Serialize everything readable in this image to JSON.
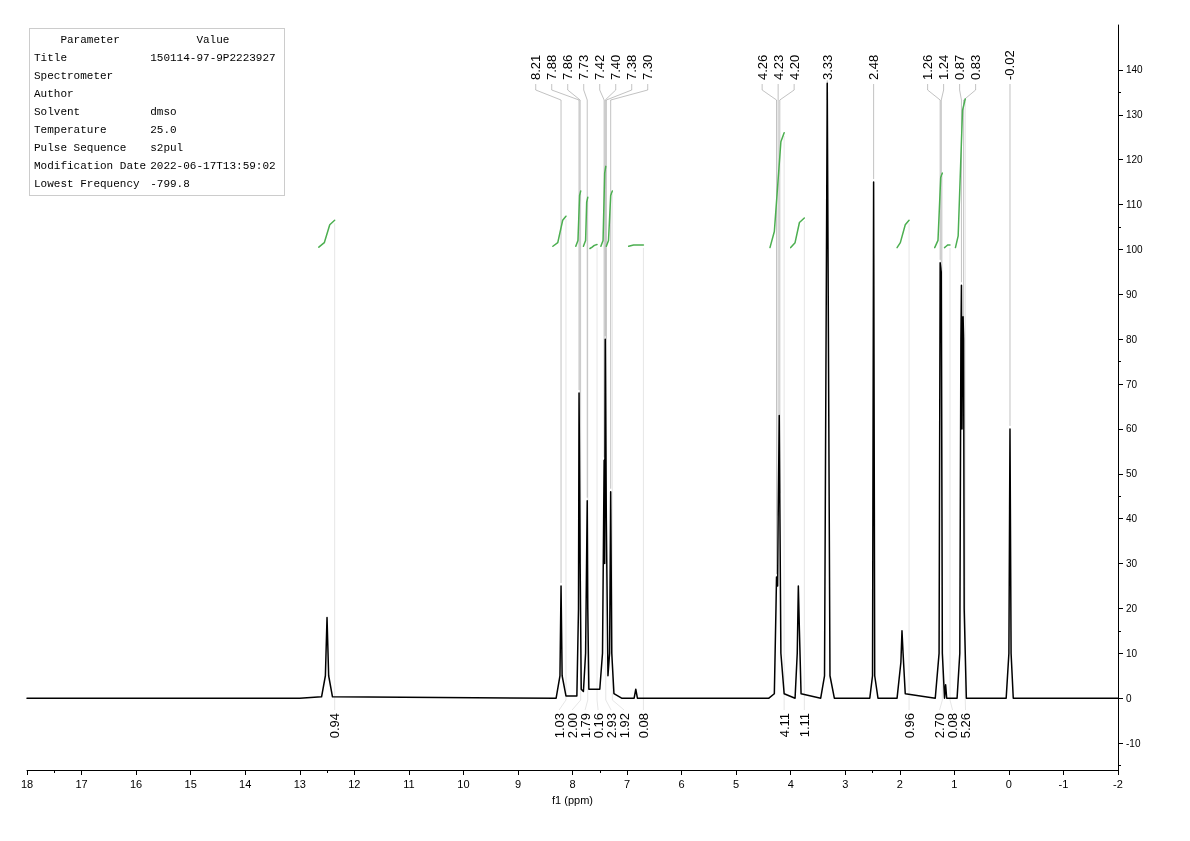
{
  "chart_data": [
    {
      "type": "line",
      "xlabel": "f1 (ppm)",
      "xlim": [
        18,
        -2
      ],
      "xticks": [
        18,
        17,
        16,
        15,
        14,
        13,
        12,
        11,
        10,
        9,
        8,
        7,
        6,
        5,
        4,
        3,
        2,
        1,
        0,
        -1,
        -2
      ],
      "ylim": [
        -16,
        150
      ],
      "yticks": [
        -10,
        0,
        10,
        20,
        30,
        40,
        50,
        60,
        70,
        80,
        90,
        100,
        110,
        120,
        130,
        140
      ],
      "grid": false,
      "marker": "none",
      "line_style": "solid",
      "series": [
        {
          "color": "#000000",
          "x": [
            18,
            13,
            12.6,
            12.53,
            12.5,
            12.47,
            12.4,
            8.3,
            8.23,
            8.21,
            8.19,
            8.12,
            7.92,
            7.89,
            7.88,
            7.86,
            7.84,
            7.8,
            7.76,
            7.73,
            7.72,
            7.7,
            7.6,
            7.5,
            7.45,
            7.42,
            7.41,
            7.4,
            7.38,
            7.35,
            7.32,
            7.3,
            7.28,
            7.24,
            7.1,
            6.87,
            6.84,
            6.81,
            4.4,
            4.3,
            4.27,
            4.26,
            4.24,
            4.23,
            4.21,
            4.2,
            4.18,
            4.12,
            3.92,
            3.88,
            3.86,
            3.84,
            3.81,
            3.45,
            3.38,
            3.33,
            3.28,
            3.2,
            2.55,
            2.5,
            2.48,
            2.46,
            2.4,
            2.05,
            1.98,
            1.96,
            1.94,
            1.9,
            1.35,
            1.28,
            1.26,
            1.24,
            1.22,
            1.18,
            1.16,
            1.14,
            0.95,
            0.9,
            0.88,
            0.87,
            0.86,
            0.85,
            0.84,
            0.83,
            0.82,
            0.78,
            0.05,
            0,
            -0.02,
            -0.04,
            -0.08,
            -2
          ],
          "values": [
            0,
            0,
            0.3,
            5,
            18,
            5,
            0.3,
            0,
            5,
            25,
            5,
            0.5,
            0.5,
            20,
            68,
            30,
            2,
            1.5,
            10,
            44,
            20,
            2,
            2,
            2,
            10,
            53,
            30,
            80,
            40,
            5,
            10,
            46,
            10,
            1,
            0,
            0,
            2,
            0,
            0,
            1,
            20,
            27,
            25,
            40,
            63,
            45,
            10,
            1,
            0,
            10,
            25,
            15,
            1,
            0,
            5,
            137,
            5,
            0,
            0,
            5,
            115,
            5,
            0,
            0,
            8,
            15,
            10,
            1,
            0,
            10,
            97,
            95,
            10,
            0,
            3,
            0,
            0,
            10,
            80,
            92,
            60,
            77,
            85,
            80,
            20,
            0,
            0,
            10,
            60,
            10,
            0,
            0
          ]
        },
        {
          "color": "#4caf50",
          "x": [
            12.65,
            12.55,
            12.45,
            12.36
          ],
          "values": [
            100.5,
            101.5,
            105.5,
            106.5
          ]
        },
        {
          "color": "#4caf50",
          "x": [
            8.36,
            8.27,
            8.18,
            8.12
          ],
          "values": [
            100.7,
            101.5,
            106.5,
            107.4
          ]
        },
        {
          "color": "#4caf50",
          "x": [
            7.94,
            7.9,
            7.87,
            7.85
          ],
          "values": [
            100.7,
            102,
            112,
            113
          ]
        },
        {
          "color": "#4caf50",
          "x": [
            7.8,
            7.76,
            7.74,
            7.72
          ],
          "values": [
            100.7,
            102,
            110.5,
            111.6
          ]
        },
        {
          "color": "#4caf51",
          "x": [
            7.68,
            7.64,
            7.6,
            7.55
          ],
          "values": [
            100.2,
            100.5,
            100.9,
            101.1
          ]
        },
        {
          "color": "#4caf50",
          "x": [
            7.48,
            7.44,
            7.41,
            7.39
          ],
          "values": [
            100.7,
            102,
            117,
            118.5
          ]
        },
        {
          "color": "#4caf50",
          "x": [
            7.38,
            7.34,
            7.3,
            7.27
          ],
          "values": [
            100.7,
            102,
            112,
            113
          ]
        },
        {
          "color": "#4caf50",
          "x": [
            6.97,
            6.88,
            6.78,
            6.7
          ],
          "values": [
            100.7,
            101,
            101,
            101
          ]
        },
        {
          "color": "#4caf50",
          "x": [
            4.38,
            4.3,
            4.18,
            4.12
          ],
          "values": [
            100.4,
            104,
            124,
            126
          ]
        },
        {
          "color": "#4caf50",
          "x": [
            4.0,
            3.92,
            3.84,
            3.75
          ],
          "values": [
            100.4,
            101.5,
            106,
            107
          ]
        },
        {
          "color": "#4caf50",
          "x": [
            2.05,
            1.99,
            1.9,
            1.83
          ],
          "values": [
            100.4,
            101.5,
            105.5,
            106.5
          ]
        },
        {
          "color": "#4caf50",
          "x": [
            1.36,
            1.3,
            1.25,
            1.22
          ],
          "values": [
            100.4,
            102,
            116,
            117
          ]
        },
        {
          "color": "#4caf52",
          "x": [
            1.18,
            1.15,
            1.12,
            1.08
          ],
          "values": [
            100.4,
            100.7,
            101,
            101
          ]
        },
        {
          "color": "#4caf53",
          "x": [
            0.98,
            0.93,
            0.85,
            0.8
          ],
          "values": [
            100.4,
            103,
            131,
            133.5
          ]
        }
      ],
      "annotations": [
        {
          "text": "8.21",
          "x": 8.21,
          "y": 25
        },
        {
          "text": "7.88",
          "x": 7.88,
          "y": 68
        },
        {
          "text": "7.86",
          "x": 7.86,
          "y": 30
        },
        {
          "text": "7.73",
          "x": 7.73,
          "y": 44
        },
        {
          "text": "7.42",
          "x": 7.42,
          "y": 53
        },
        {
          "text": "7.40",
          "x": 7.4,
          "y": 80
        },
        {
          "text": "7.38",
          "x": 7.38,
          "y": 40
        },
        {
          "text": "7.30",
          "x": 7.3,
          "y": 46
        },
        {
          "text": "4.26",
          "x": 4.26,
          "y": 27
        },
        {
          "text": "4.23",
          "x": 4.23,
          "y": 40
        },
        {
          "text": "4.20",
          "x": 4.2,
          "y": 45
        },
        {
          "text": "3.33",
          "x": 3.33,
          "y": 137
        },
        {
          "text": "2.48",
          "x": 2.48,
          "y": 115
        },
        {
          "text": "1.26",
          "x": 1.26,
          "y": 97
        },
        {
          "text": "1.24",
          "x": 1.24,
          "y": 95
        },
        {
          "text": "0.87",
          "x": 0.87,
          "y": 92
        },
        {
          "text": "0.83",
          "x": 0.83,
          "y": 80
        },
        {
          "text": "-0.02",
          "x": -0.02,
          "y": 60
        },
        {
          "text": "0.94",
          "x": 12.36,
          "y": 106.5
        },
        {
          "text": "1.03",
          "x": 8.12,
          "y": 107.4
        },
        {
          "text": "2.00",
          "x": 7.85,
          "y": 113
        },
        {
          "text": "1.79",
          "x": 7.72,
          "y": 111.6
        },
        {
          "text": "0.16",
          "x": 7.55,
          "y": 101.1
        },
        {
          "text": "2.93",
          "x": 7.39,
          "y": 118.5
        },
        {
          "text": "1.92",
          "x": 7.27,
          "y": 113
        },
        {
          "text": "0.08",
          "x": 6.7,
          "y": 101
        },
        {
          "text": "4.11",
          "x": 4.12,
          "y": 126
        },
        {
          "text": "1.11",
          "x": 3.75,
          "y": 107
        },
        {
          "text": "0.96",
          "x": 1.83,
          "y": 106.5
        },
        {
          "text": "2.70",
          "x": 1.22,
          "y": 117
        },
        {
          "text": "0.08",
          "x": 1.08,
          "y": 101
        },
        {
          "text": "5.26",
          "x": 0.8,
          "y": 133.5
        }
      ]
    },
    {
      "type": "other",
      "categories": [
        "Parameter",
        "Title",
        "Spectrometer",
        "Author",
        "Solvent",
        "Temperature",
        "Pulse Sequence",
        "Modification Date",
        "Lowest Frequency"
      ],
      "value_labels": [
        "Value",
        "150114-97-9P2223927",
        null,
        null,
        "dmso",
        "25.0",
        "s2pul",
        "2022-06-17T13:59:02",
        "-799.8"
      ]
    }
  ]
}
